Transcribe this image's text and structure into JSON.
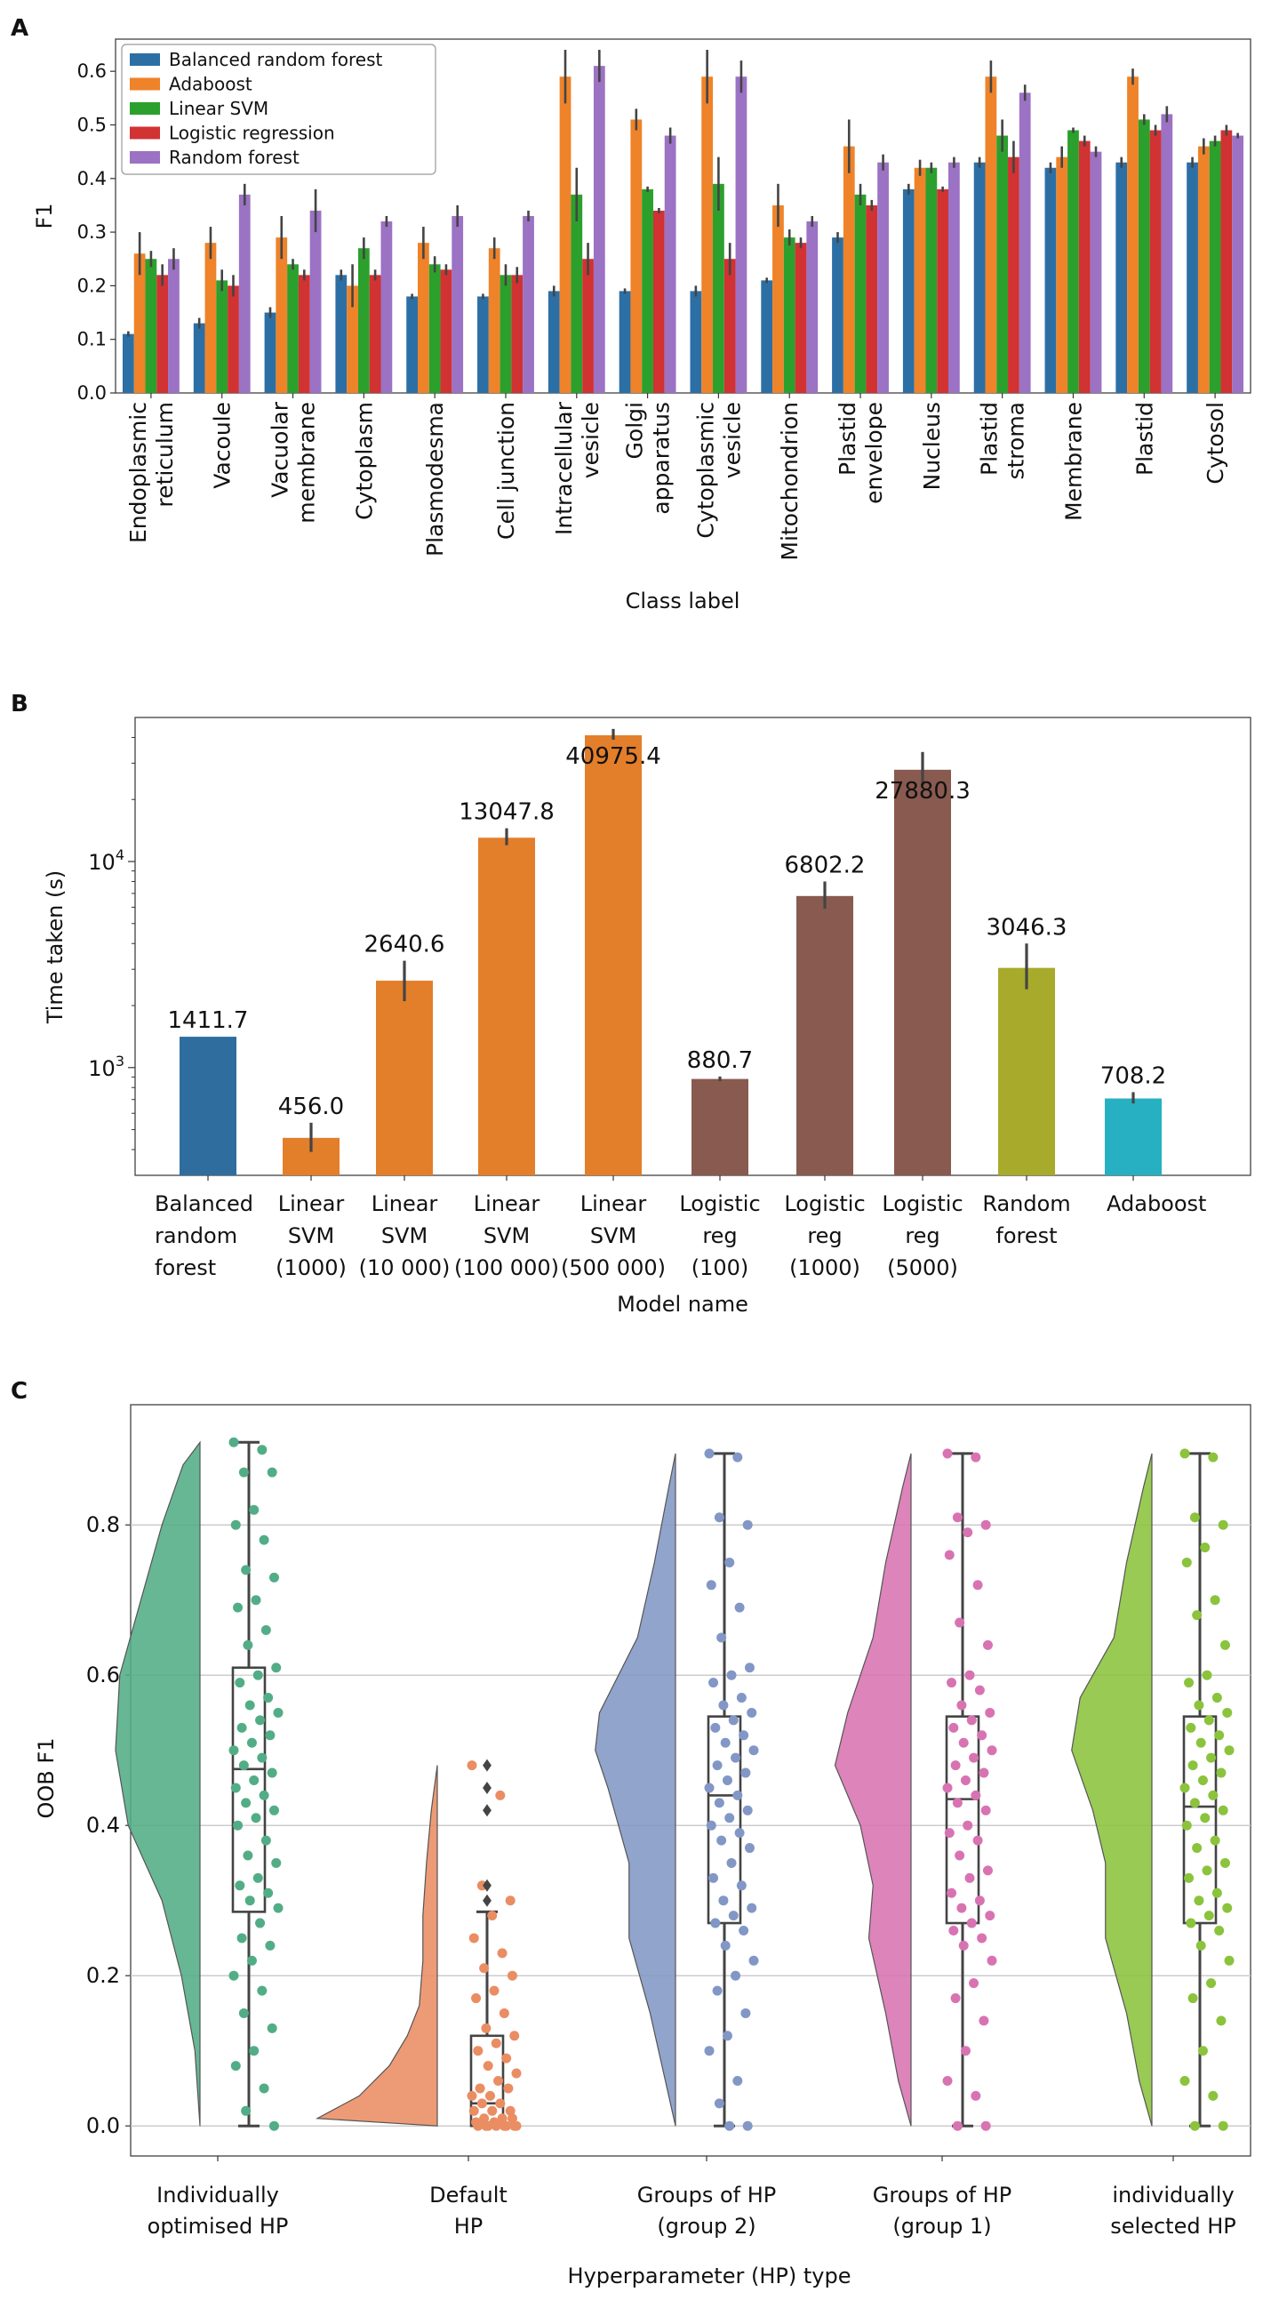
{
  "colors": {
    "Balanced random forest": "#2c6fa5",
    "Adaboost": "#ee8329",
    "Linear SVM": "#2ca02c",
    "Logistic regression": "#d13232",
    "Random forest": "#9b72c4",
    "b_brf": "#2e6d9e",
    "b_svm": "#e37e2b",
    "b_lr": "#895a50",
    "b_rf": "#a8aa2c",
    "b_ada": "#27b0c1",
    "c_opt": "#52ad86",
    "c_def": "#ea8d63",
    "c_g2": "#8297c5",
    "c_g1": "#d873b2",
    "c_sel": "#8bc33c",
    "errbar": "#444444",
    "grid": "#cccccc",
    "box": "#444444"
  },
  "panel_labels": {
    "a": "A",
    "b": "B",
    "c": "C"
  },
  "chart_data": [
    {
      "type": "bar",
      "panel": "A",
      "title": "",
      "xlabel": "Class label",
      "ylabel": "F1",
      "ylim": [
        0,
        0.66
      ],
      "yticks": [
        "0.0",
        "0.1",
        "0.2",
        "0.3",
        "0.4",
        "0.5",
        "0.6"
      ],
      "legend_position": "top-left",
      "categories": [
        [
          "Endoplasmic",
          "reticulum"
        ],
        [
          "Vacoule"
        ],
        [
          "Vacuolar",
          "membrane"
        ],
        [
          "Cytoplasm"
        ],
        [
          "Plasmodesma"
        ],
        [
          "Cell junction"
        ],
        [
          "Intracellular",
          "vesicle"
        ],
        [
          "Golgi",
          "apparatus"
        ],
        [
          "Cytoplasmic",
          "vesicle"
        ],
        [
          "Mitochondrion"
        ],
        [
          "Plastid",
          "envelope"
        ],
        [
          "Nucleus"
        ],
        [
          "Plastid",
          "stroma"
        ],
        [
          "Membrane"
        ],
        [
          "Plastid"
        ],
        [
          "Cytosol"
        ]
      ],
      "series": [
        {
          "name": "Balanced random forest",
          "values": [
            0.11,
            0.13,
            0.15,
            0.22,
            0.18,
            0.18,
            0.19,
            0.19,
            0.19,
            0.21,
            0.29,
            0.38,
            0.43,
            0.42,
            0.43,
            0.43
          ],
          "err": [
            0.005,
            0.01,
            0.01,
            0.01,
            0.005,
            0.005,
            0.01,
            0.005,
            0.01,
            0.005,
            0.01,
            0.01,
            0.01,
            0.01,
            0.01,
            0.01
          ]
        },
        {
          "name": "Adaboost",
          "values": [
            0.26,
            0.28,
            0.29,
            0.2,
            0.28,
            0.27,
            0.59,
            0.51,
            0.59,
            0.35,
            0.46,
            0.42,
            0.59,
            0.44,
            0.59,
            0.46
          ],
          "err": [
            0.04,
            0.03,
            0.04,
            0.04,
            0.03,
            0.02,
            0.05,
            0.02,
            0.05,
            0.04,
            0.05,
            0.015,
            0.03,
            0.02,
            0.015,
            0.015
          ]
        },
        {
          "name": "Linear SVM",
          "values": [
            0.25,
            0.21,
            0.24,
            0.27,
            0.24,
            0.22,
            0.37,
            0.38,
            0.39,
            0.29,
            0.37,
            0.42,
            0.48,
            0.49,
            0.51,
            0.47
          ],
          "err": [
            0.015,
            0.02,
            0.01,
            0.02,
            0.015,
            0.02,
            0.05,
            0.005,
            0.05,
            0.015,
            0.02,
            0.01,
            0.03,
            0.005,
            0.01,
            0.01
          ]
        },
        {
          "name": "Logistic regression",
          "values": [
            0.22,
            0.2,
            0.22,
            0.22,
            0.23,
            0.22,
            0.25,
            0.34,
            0.25,
            0.28,
            0.35,
            0.38,
            0.44,
            0.47,
            0.49,
            0.49
          ],
          "err": [
            0.02,
            0.02,
            0.01,
            0.01,
            0.01,
            0.015,
            0.03,
            0.005,
            0.03,
            0.01,
            0.01,
            0.005,
            0.03,
            0.01,
            0.01,
            0.01
          ]
        },
        {
          "name": "Random forest",
          "values": [
            0.25,
            0.37,
            0.34,
            0.32,
            0.33,
            0.33,
            0.61,
            0.48,
            0.59,
            0.32,
            0.43,
            0.43,
            0.56,
            0.45,
            0.52,
            0.48
          ],
          "err": [
            0.02,
            0.02,
            0.04,
            0.01,
            0.02,
            0.01,
            0.03,
            0.015,
            0.03,
            0.01,
            0.015,
            0.01,
            0.015,
            0.01,
            0.015,
            0.005
          ]
        }
      ]
    },
    {
      "type": "bar",
      "panel": "B",
      "title": "",
      "xlabel": "Model name",
      "ylabel": "Time taken (s)",
      "yscale": "log",
      "ylim": [
        300,
        50000
      ],
      "yticks": [
        {
          "value": 1000,
          "base": "10",
          "exp": "3"
        },
        {
          "value": 10000,
          "base": "10",
          "exp": "4"
        }
      ],
      "categories": [
        [
          "Balanced",
          "random",
          "forest"
        ],
        [
          "Linear",
          "SVM",
          "(1000)"
        ],
        [
          "Linear",
          "SVM",
          "(10 000)"
        ],
        [
          "Linear",
          "SVM",
          "(100 000)"
        ],
        [
          "Linear",
          "SVM",
          "(500 000)"
        ],
        [
          "Logistic",
          "reg",
          "(100)"
        ],
        [
          "Logistic",
          "reg",
          "(1000)"
        ],
        [
          "Logistic",
          "reg",
          "(5000)"
        ],
        [
          "Random",
          "forest"
        ],
        [
          "Adaboost"
        ]
      ],
      "values": [
        1411.7,
        456.0,
        2640.6,
        13047.8,
        40975.4,
        880.7,
        6802.2,
        27880.3,
        3046.3,
        708.2
      ],
      "data_labels": [
        "1411.7",
        "456.0",
        "2640.6",
        "13047.8",
        "40975.4",
        "880.7",
        "6802.2",
        "27880.3",
        "3046.3",
        "708.2"
      ],
      "err_low": [
        1411.7,
        390,
        2100,
        12000,
        39000,
        860,
        5900,
        23500,
        2400,
        670
      ],
      "err_high": [
        1411.7,
        540,
        3300,
        14500,
        44000,
        905,
        8000,
        34000,
        4000,
        760
      ],
      "color_keys": [
        "b_brf",
        "b_svm",
        "b_svm",
        "b_svm",
        "b_svm",
        "b_lr",
        "b_lr",
        "b_lr",
        "b_rf",
        "b_ada"
      ]
    },
    {
      "type": "raincloud",
      "panel": "C",
      "title": "",
      "xlabel": "Hyperparameter (HP) type",
      "ylabel": "OOB F1",
      "ylim": [
        -0.04,
        0.96
      ],
      "yticks": [
        "0.0",
        "0.2",
        "0.4",
        "0.6",
        "0.8"
      ],
      "grid": true,
      "categories": [
        [
          "Individually",
          "optimised HP"
        ],
        [
          "Default",
          "HP"
        ],
        [
          "Groups of HP",
          "(group 2)"
        ],
        [
          "Groups of HP",
          "(group 1)"
        ],
        [
          "individually",
          "selected HP"
        ]
      ],
      "color_keys": [
        "c_opt",
        "c_def",
        "c_g2",
        "c_g1",
        "c_sel"
      ],
      "box": [
        {
          "min": 0.0,
          "q1": 0.285,
          "median": 0.475,
          "q3": 0.61,
          "max": 0.91,
          "outliers": []
        },
        {
          "min": 0.0,
          "q1": 0.0,
          "median": 0.03,
          "q3": 0.12,
          "max": 0.285,
          "outliers": [
            0.32,
            0.3,
            0.42,
            0.45,
            0.48
          ]
        },
        {
          "min": 0.0,
          "q1": 0.27,
          "median": 0.44,
          "q3": 0.545,
          "max": 0.895,
          "outliers": []
        },
        {
          "min": 0.0,
          "q1": 0.27,
          "median": 0.435,
          "q3": 0.545,
          "max": 0.895,
          "outliers": []
        },
        {
          "min": 0.0,
          "q1": 0.27,
          "median": 0.425,
          "q3": 0.545,
          "max": 0.895,
          "outliers": []
        }
      ],
      "points": [
        [
          0.91,
          0.9,
          0.87,
          0.87,
          0.82,
          0.8,
          0.78,
          0.74,
          0.73,
          0.7,
          0.69,
          0.66,
          0.64,
          0.61,
          0.6,
          0.59,
          0.57,
          0.56,
          0.55,
          0.54,
          0.53,
          0.52,
          0.51,
          0.5,
          0.49,
          0.48,
          0.47,
          0.46,
          0.45,
          0.44,
          0.43,
          0.42,
          0.41,
          0.4,
          0.38,
          0.36,
          0.35,
          0.33,
          0.32,
          0.31,
          0.3,
          0.29,
          0.27,
          0.25,
          0.24,
          0.22,
          0.2,
          0.18,
          0.15,
          0.13,
          0.1,
          0.08,
          0.05,
          0.02,
          0.0
        ],
        [
          0.48,
          0.44,
          0.32,
          0.3,
          0.28,
          0.25,
          0.23,
          0.21,
          0.2,
          0.18,
          0.17,
          0.15,
          0.13,
          0.12,
          0.11,
          0.1,
          0.09,
          0.08,
          0.07,
          0.06,
          0.05,
          0.05,
          0.04,
          0.04,
          0.03,
          0.03,
          0.02,
          0.02,
          0.02,
          0.01,
          0.01,
          0.01,
          0.005,
          0.005,
          0.0,
          0.0,
          0.0,
          0.0,
          0.0,
          0.0,
          0.0,
          0.0
        ],
        [
          0.895,
          0.89,
          0.81,
          0.8,
          0.75,
          0.72,
          0.69,
          0.65,
          0.61,
          0.6,
          0.59,
          0.57,
          0.56,
          0.55,
          0.54,
          0.53,
          0.52,
          0.51,
          0.5,
          0.49,
          0.48,
          0.47,
          0.46,
          0.45,
          0.44,
          0.43,
          0.42,
          0.41,
          0.4,
          0.39,
          0.38,
          0.37,
          0.35,
          0.33,
          0.32,
          0.3,
          0.29,
          0.28,
          0.27,
          0.26,
          0.24,
          0.22,
          0.2,
          0.18,
          0.15,
          0.12,
          0.1,
          0.06,
          0.03,
          0.0,
          0.0
        ],
        [
          0.895,
          0.89,
          0.81,
          0.8,
          0.79,
          0.76,
          0.72,
          0.67,
          0.64,
          0.6,
          0.59,
          0.58,
          0.56,
          0.55,
          0.54,
          0.53,
          0.52,
          0.51,
          0.5,
          0.49,
          0.48,
          0.47,
          0.46,
          0.45,
          0.44,
          0.43,
          0.42,
          0.4,
          0.39,
          0.38,
          0.36,
          0.34,
          0.33,
          0.31,
          0.3,
          0.29,
          0.28,
          0.27,
          0.26,
          0.25,
          0.24,
          0.22,
          0.19,
          0.17,
          0.14,
          0.1,
          0.06,
          0.04,
          0.0,
          0.0
        ],
        [
          0.895,
          0.89,
          0.81,
          0.8,
          0.77,
          0.75,
          0.7,
          0.68,
          0.64,
          0.6,
          0.59,
          0.57,
          0.56,
          0.55,
          0.54,
          0.53,
          0.52,
          0.51,
          0.5,
          0.49,
          0.48,
          0.47,
          0.46,
          0.45,
          0.44,
          0.43,
          0.42,
          0.41,
          0.4,
          0.38,
          0.37,
          0.35,
          0.34,
          0.33,
          0.31,
          0.3,
          0.29,
          0.28,
          0.27,
          0.26,
          0.24,
          0.22,
          0.19,
          0.17,
          0.14,
          0.1,
          0.06,
          0.04,
          0.0,
          0.0
        ]
      ],
      "density": [
        [
          [
            0.0,
            0.0
          ],
          [
            0.05,
            0.03
          ],
          [
            0.1,
            0.06
          ],
          [
            0.2,
            0.22
          ],
          [
            0.3,
            0.45
          ],
          [
            0.4,
            0.85
          ],
          [
            0.5,
            1.0
          ],
          [
            0.6,
            0.95
          ],
          [
            0.7,
            0.7
          ],
          [
            0.8,
            0.45
          ],
          [
            0.88,
            0.2
          ],
          [
            0.91,
            0.0
          ]
        ],
        [
          [
            0.0,
            0.0
          ],
          [
            0.01,
            1.0
          ],
          [
            0.04,
            0.65
          ],
          [
            0.08,
            0.4
          ],
          [
            0.12,
            0.25
          ],
          [
            0.16,
            0.15
          ],
          [
            0.22,
            0.12
          ],
          [
            0.28,
            0.12
          ],
          [
            0.35,
            0.09
          ],
          [
            0.42,
            0.05
          ],
          [
            0.48,
            0.0
          ]
        ],
        [
          [
            0.0,
            0.0
          ],
          [
            0.06,
            0.12
          ],
          [
            0.15,
            0.3
          ],
          [
            0.25,
            0.55
          ],
          [
            0.35,
            0.55
          ],
          [
            0.45,
            0.8
          ],
          [
            0.5,
            0.95
          ],
          [
            0.55,
            0.9
          ],
          [
            0.65,
            0.45
          ],
          [
            0.75,
            0.25
          ],
          [
            0.85,
            0.08
          ],
          [
            0.895,
            0.0
          ]
        ],
        [
          [
            0.0,
            0.0
          ],
          [
            0.06,
            0.15
          ],
          [
            0.15,
            0.3
          ],
          [
            0.25,
            0.5
          ],
          [
            0.32,
            0.45
          ],
          [
            0.4,
            0.6
          ],
          [
            0.48,
            0.9
          ],
          [
            0.55,
            0.75
          ],
          [
            0.65,
            0.45
          ],
          [
            0.75,
            0.3
          ],
          [
            0.85,
            0.1
          ],
          [
            0.895,
            0.0
          ]
        ],
        [
          [
            0.0,
            0.0
          ],
          [
            0.06,
            0.15
          ],
          [
            0.15,
            0.3
          ],
          [
            0.25,
            0.55
          ],
          [
            0.35,
            0.55
          ],
          [
            0.42,
            0.7
          ],
          [
            0.5,
            0.95
          ],
          [
            0.57,
            0.85
          ],
          [
            0.65,
            0.45
          ],
          [
            0.75,
            0.3
          ],
          [
            0.85,
            0.1
          ],
          [
            0.895,
            0.0
          ]
        ]
      ]
    }
  ]
}
